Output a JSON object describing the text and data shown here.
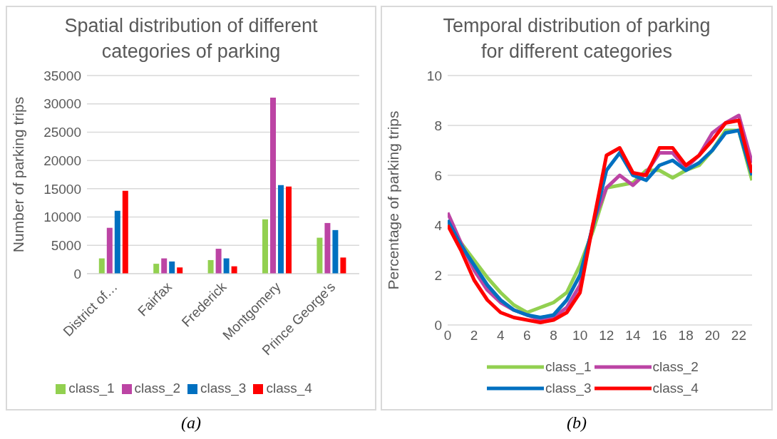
{
  "chart_data": [
    {
      "type": "bar",
      "title": "Spatial distribution of different categories of parking",
      "ylabel": "Number of parking trips",
      "categories": [
        "District of…",
        "Fairfax",
        "Frederick",
        "Montgomery",
        "Prince George's"
      ],
      "series": [
        {
          "name": "class_1",
          "color": "#92d050",
          "values": [
            2700,
            1750,
            2400,
            9600,
            6350
          ]
        },
        {
          "name": "class_2",
          "color": "#bc44a4",
          "values": [
            8100,
            2700,
            4400,
            31100,
            8950
          ]
        },
        {
          "name": "class_3",
          "color": "#0070c0",
          "values": [
            11100,
            2150,
            2700,
            15650,
            7700
          ]
        },
        {
          "name": "class_4",
          "color": "#ff0000",
          "values": [
            14650,
            1100,
            1300,
            15400,
            2850
          ]
        }
      ],
      "ylim": [
        0,
        35000
      ],
      "yticks": [
        0,
        5000,
        10000,
        15000,
        20000,
        25000,
        30000,
        35000
      ],
      "grid": "y",
      "legend": "bottom",
      "annotations": [
        "(a)"
      ]
    },
    {
      "type": "line",
      "title": "Temporal distribution of parking for different categories",
      "ylabel": "Percentage of parking trips",
      "x": [
        0,
        1,
        2,
        3,
        4,
        5,
        6,
        7,
        8,
        9,
        10,
        11,
        12,
        13,
        14,
        15,
        16,
        17,
        18,
        19,
        20,
        21,
        22,
        23
      ],
      "series": [
        {
          "name": "class_1",
          "color": "#92d050",
          "values": [
            4.1,
            3.3,
            2.6,
            1.9,
            1.3,
            0.8,
            0.5,
            0.7,
            0.9,
            1.3,
            2.4,
            3.8,
            5.5,
            5.6,
            5.7,
            6.2,
            6.2,
            5.9,
            6.2,
            6.4,
            7.0,
            7.8,
            7.8,
            5.8
          ]
        },
        {
          "name": "class_2",
          "color": "#bc44a4",
          "values": [
            4.5,
            3.3,
            2.2,
            1.4,
            0.9,
            0.6,
            0.4,
            0.2,
            0.3,
            0.7,
            1.6,
            4.1,
            5.5,
            6.0,
            5.6,
            6.1,
            6.9,
            6.9,
            6.3,
            6.8,
            7.7,
            8.1,
            8.4,
            6.5
          ]
        },
        {
          "name": "class_3",
          "color": "#0070c0",
          "values": [
            4.2,
            3.2,
            2.4,
            1.6,
            1.0,
            0.6,
            0.4,
            0.3,
            0.4,
            1.0,
            2.0,
            4.0,
            6.2,
            6.9,
            6.0,
            5.8,
            6.4,
            6.6,
            6.2,
            6.5,
            7.0,
            7.7,
            7.8,
            6.0
          ]
        },
        {
          "name": "class_4",
          "color": "#ff0000",
          "values": [
            4.0,
            3.0,
            1.8,
            1.0,
            0.5,
            0.3,
            0.2,
            0.1,
            0.2,
            0.5,
            1.3,
            4.1,
            6.8,
            7.1,
            6.1,
            6.0,
            7.1,
            7.1,
            6.4,
            6.8,
            7.4,
            8.1,
            8.2,
            6.1
          ]
        }
      ],
      "xlim": [
        0,
        23
      ],
      "xticks": [
        0,
        2,
        4,
        6,
        8,
        10,
        12,
        14,
        16,
        18,
        20,
        22
      ],
      "ylim": [
        0,
        10
      ],
      "yticks": [
        0,
        2,
        4,
        6,
        8,
        10
      ],
      "grid": "y",
      "legend": "bottom",
      "marker": "none",
      "line_style": "solid",
      "annotations": [
        "(b)"
      ]
    }
  ]
}
